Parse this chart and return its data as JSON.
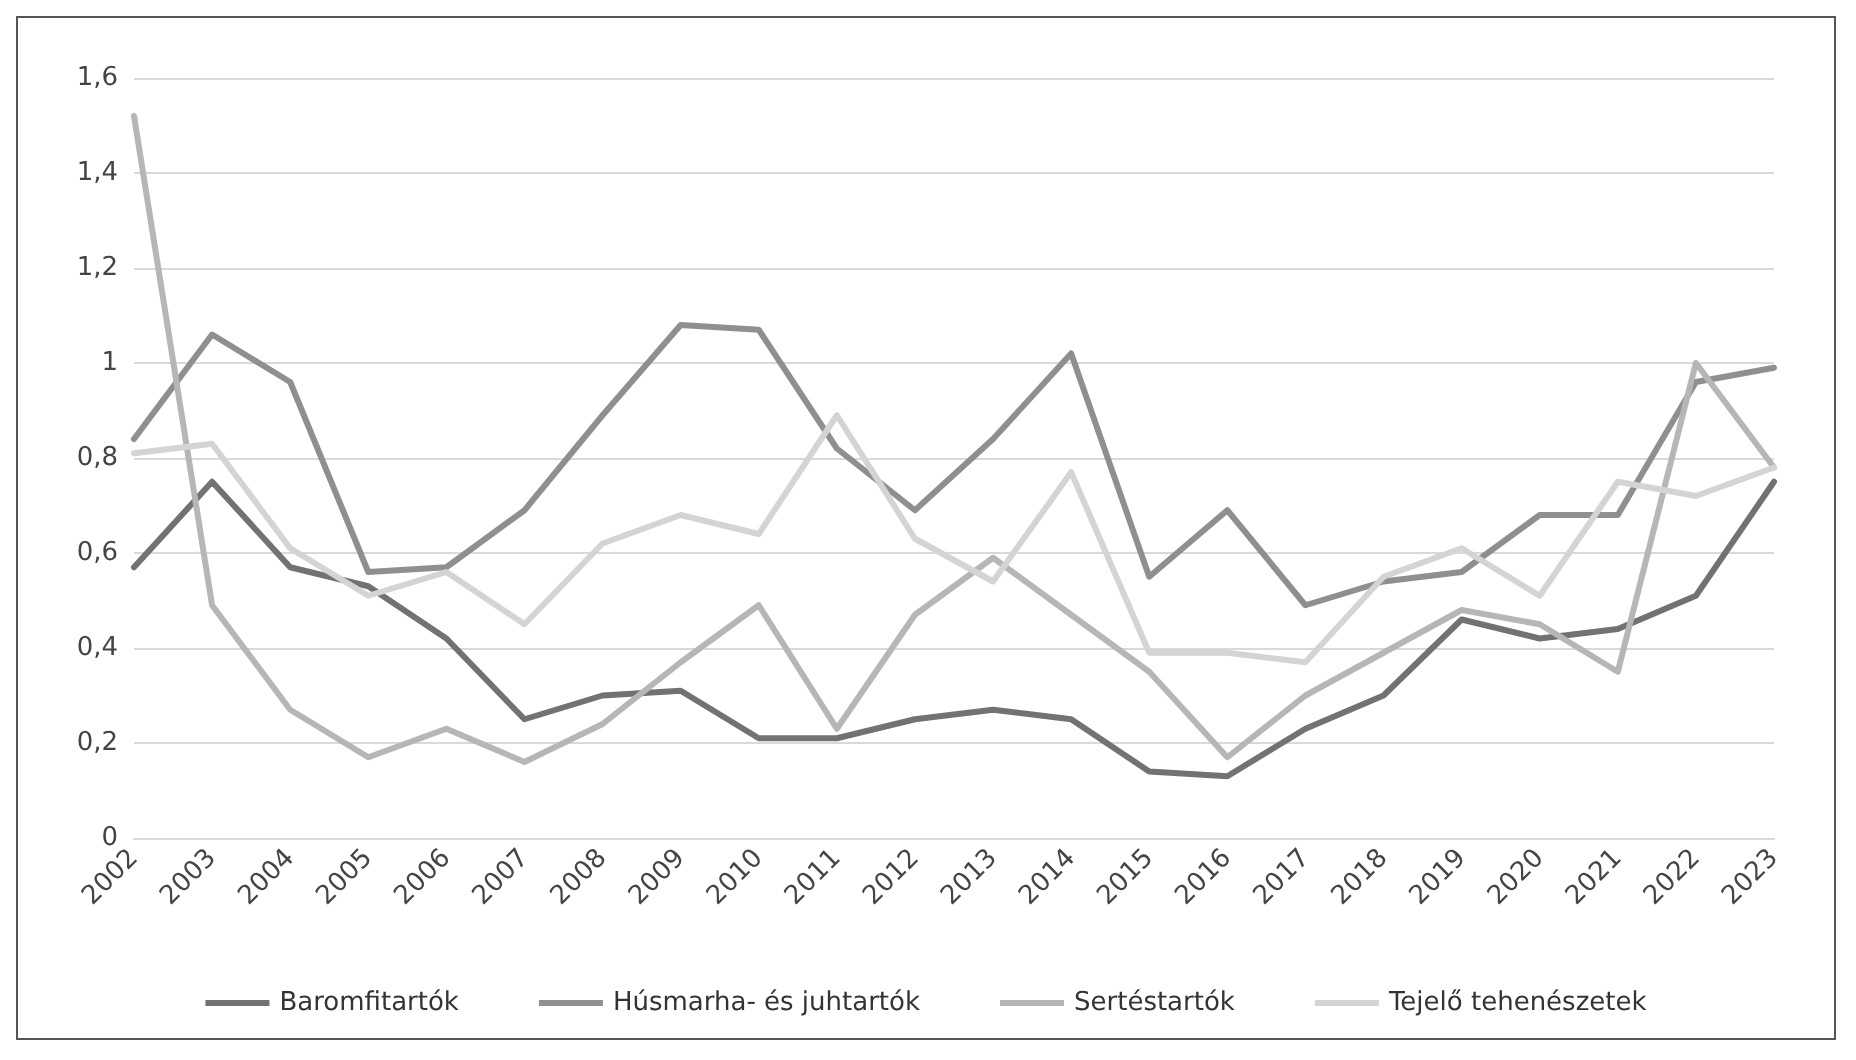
{
  "chart_data": {
    "type": "line",
    "categories": [
      "2002",
      "2003",
      "2004",
      "2005",
      "2006",
      "2007",
      "2008",
      "2009",
      "2010",
      "2011",
      "2012",
      "2013",
      "2014",
      "2015",
      "2016",
      "2017",
      "2018",
      "2019",
      "2020",
      "2021",
      "2022",
      "2023"
    ],
    "series": [
      {
        "name": "Baromfitartók",
        "color": "#727272",
        "values": [
          0.57,
          0.75,
          0.57,
          0.53,
          0.42,
          0.25,
          0.3,
          0.31,
          0.21,
          0.21,
          0.25,
          0.27,
          0.25,
          0.14,
          0.13,
          0.23,
          0.3,
          0.46,
          0.42,
          0.44,
          0.51,
          0.75
        ]
      },
      {
        "name": "Húsmarha- és juhtartók",
        "color": "#8f8f8f",
        "values": [
          0.84,
          1.06,
          0.96,
          0.56,
          0.57,
          0.69,
          0.89,
          1.08,
          1.07,
          0.82,
          0.69,
          0.84,
          1.02,
          0.55,
          0.69,
          0.49,
          0.54,
          0.56,
          0.68,
          0.68,
          0.96,
          0.99
        ]
      },
      {
        "name": "Sertéstartók",
        "color": "#b6b6b6",
        "values": [
          1.52,
          0.49,
          0.27,
          0.17,
          0.23,
          0.16,
          0.24,
          0.37,
          0.49,
          0.23,
          0.47,
          0.59,
          0.47,
          0.35,
          0.17,
          0.3,
          0.39,
          0.48,
          0.45,
          0.35,
          1.0,
          0.78
        ]
      },
      {
        "name": "Tejelő tehenészetek",
        "color": "#d4d4d4",
        "values": [
          0.81,
          0.83,
          0.61,
          0.51,
          0.56,
          0.45,
          0.62,
          0.68,
          0.64,
          0.89,
          0.63,
          0.54,
          0.77,
          0.39,
          0.39,
          0.37,
          0.55,
          0.61,
          0.51,
          0.75,
          0.72,
          0.78
        ]
      }
    ],
    "ylim": [
      0,
      1.6
    ],
    "yticks": [
      0,
      {
        "value": 0.2,
        "label": "0,2"
      },
      {
        "value": 0.4,
        "label": "0,4"
      },
      {
        "value": 0.6,
        "label": "0,6"
      },
      {
        "value": 0.8,
        "label": "0,8"
      },
      1,
      {
        "value": 1.2,
        "label": "1,2"
      },
      {
        "value": 1.4,
        "label": "1,4"
      },
      {
        "value": 1.6,
        "label": "1,6"
      }
    ],
    "grid": "y",
    "legend": "bottom",
    "marker": "none",
    "line_style": "solid"
  }
}
